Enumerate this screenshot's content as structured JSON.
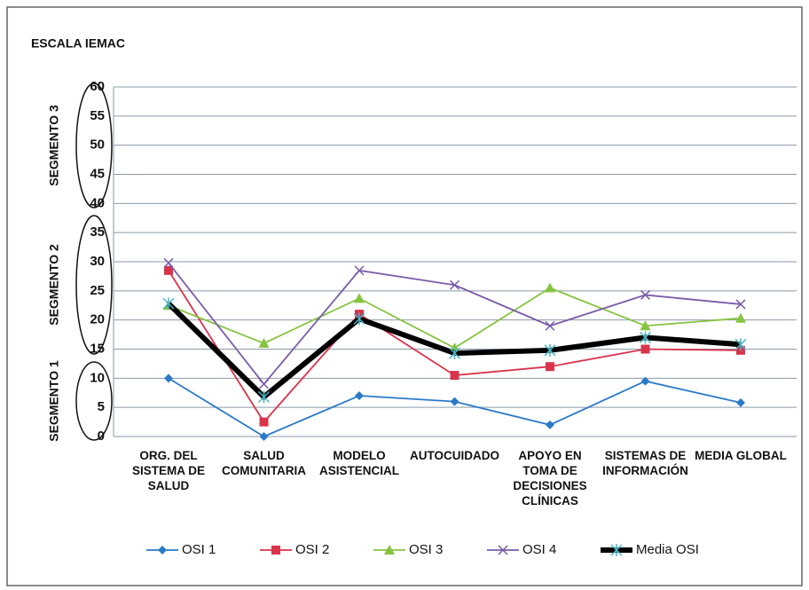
{
  "chart_data": {
    "type": "line",
    "scale_title": "ESCALA IEMAC",
    "segments": [
      "SEGMENTO 3",
      "SEGMENTO 2",
      "SEGMENTO 1"
    ],
    "categories": [
      "ORG. DEL SISTEMA DE SALUD",
      "SALUD COMUNITARIA",
      "MODELO ASISTENCIAL",
      "AUTOCUIDADO",
      "APOYO EN TOMA DE DECISIONES CLÍNICAS",
      "SISTEMAS DE INFORMACIÓN",
      "MEDIA GLOBAL"
    ],
    "series": [
      {
        "name": "OSI 1",
        "color": "#2a7ac8",
        "marker": "diamond",
        "values": [
          10,
          0,
          7,
          6,
          2,
          9.5,
          5.8
        ]
      },
      {
        "name": "OSI 2",
        "color": "#d8344c",
        "marker": "square",
        "values": [
          28.5,
          2.5,
          21,
          10.5,
          12,
          15,
          14.8
        ]
      },
      {
        "name": "OSI 3",
        "color": "#86c440",
        "marker": "triangle",
        "values": [
          22.5,
          16,
          23.7,
          15.2,
          25.5,
          19,
          20.3
        ]
      },
      {
        "name": "OSI 4",
        "color": "#7a5ca8",
        "marker": "x",
        "values": [
          29.8,
          9,
          28.5,
          26,
          19,
          24.3,
          22.7
        ]
      },
      {
        "name": "Media OSI",
        "color": "#000000",
        "marker": "star",
        "values": [
          22.8,
          6.8,
          20.2,
          14.3,
          14.8,
          17,
          15.8
        ]
      }
    ],
    "ylim": [
      0,
      60
    ],
    "yticks": [
      0,
      5,
      10,
      15,
      20,
      25,
      30,
      35,
      40,
      45,
      50,
      55,
      60
    ],
    "grid": true
  }
}
